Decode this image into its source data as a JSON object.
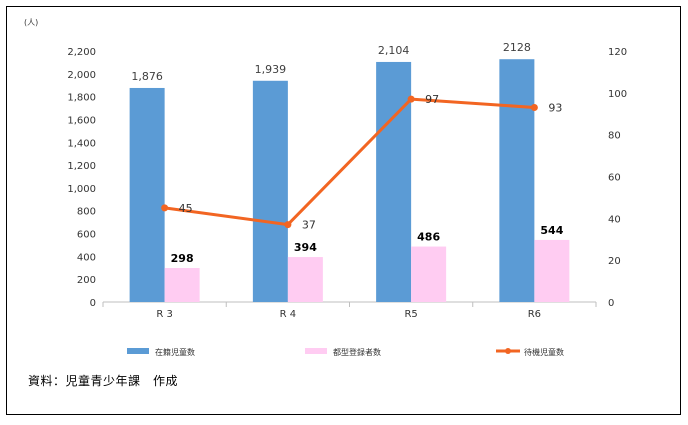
{
  "chart_data": {
    "type": "bar",
    "unit_label": "(人)",
    "categories": [
      "R 3",
      "R 4",
      "R5",
      "R6"
    ],
    "series": [
      {
        "name": "在籍児童数",
        "kind": "bar",
        "axis": "left",
        "color": "#5b9bd5",
        "values": [
          1876,
          1939,
          2104,
          2128
        ],
        "labels": [
          "1,876",
          "1,939",
          "2,104",
          "2128"
        ]
      },
      {
        "name": "都型登録者数",
        "kind": "bar",
        "axis": "left",
        "color": "#ffccf2",
        "values": [
          298,
          394,
          486,
          544
        ],
        "labels": [
          "298",
          "394",
          "486",
          "544"
        ]
      },
      {
        "name": "待機児童数",
        "kind": "line",
        "axis": "right",
        "color": "#f26522",
        "values": [
          45,
          37,
          97,
          93
        ],
        "labels": [
          "45",
          "37",
          "97",
          "93"
        ]
      }
    ],
    "y_left": {
      "min": 0,
      "max": 2200,
      "step": 200,
      "tick_labels": [
        "0",
        "200",
        "400",
        "600",
        "800",
        "1,000",
        "1,200",
        "1,400",
        "1,600",
        "1,800",
        "2,000",
        "2,200"
      ]
    },
    "y_right": {
      "min": 0,
      "max": 120,
      "step": 20,
      "tick_labels": [
        "0",
        "20",
        "40",
        "60",
        "80",
        "100",
        "120"
      ]
    },
    "grid": false,
    "legend_position": "bottom"
  },
  "source_note": "資料：児童青少年課　作成"
}
